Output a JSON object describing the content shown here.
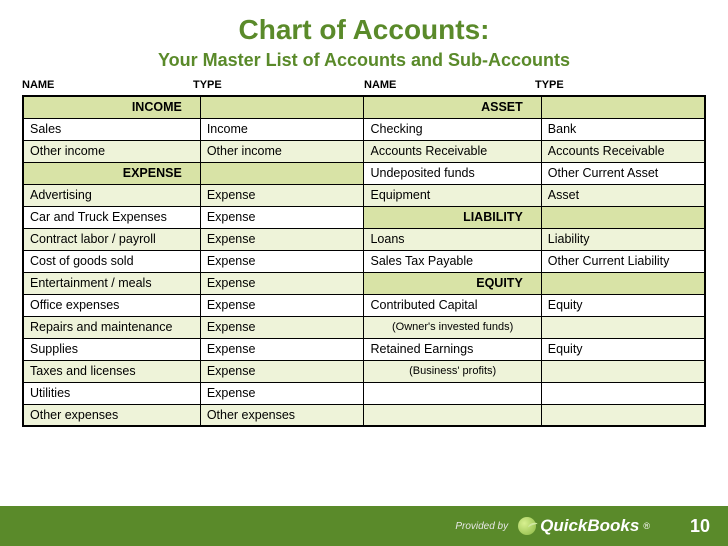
{
  "colors": {
    "title": "#5a8a2a",
    "section_bg": "#d8e3a6",
    "row_alt_bg": "#eef3d9",
    "row_bg": "#ffffff",
    "footer_bg": "#5a8a2a",
    "border": "#000000"
  },
  "title": {
    "text": "Chart of Accounts:",
    "fontsize": 28
  },
  "subtitle": {
    "text": "Your Master List of Accounts and Sub-Accounts",
    "fontsize": 18
  },
  "column_headers": [
    "NAME",
    "TYPE",
    "NAME",
    "TYPE"
  ],
  "col_widths_pct": [
    26,
    24,
    26,
    24
  ],
  "rows": [
    {
      "cells": [
        {
          "t": "INCOME",
          "kind": "section"
        },
        {
          "t": "",
          "kind": "section"
        },
        {
          "t": "ASSET",
          "kind": "section"
        },
        {
          "t": "",
          "kind": "section"
        }
      ],
      "alt": false
    },
    {
      "cells": [
        {
          "t": "Sales"
        },
        {
          "t": "Income"
        },
        {
          "t": "Checking"
        },
        {
          "t": "Bank"
        }
      ],
      "alt": false
    },
    {
      "cells": [
        {
          "t": "Other income"
        },
        {
          "t": "Other income"
        },
        {
          "t": "Accounts Receivable"
        },
        {
          "t": "Accounts Receivable"
        }
      ],
      "alt": true
    },
    {
      "cells": [
        {
          "t": "EXPENSE",
          "kind": "section"
        },
        {
          "t": "",
          "kind": "section"
        },
        {
          "t": "Undeposited funds"
        },
        {
          "t": "Other Current Asset"
        }
      ],
      "alt": false
    },
    {
      "cells": [
        {
          "t": "Advertising"
        },
        {
          "t": "Expense"
        },
        {
          "t": "Equipment"
        },
        {
          "t": "Asset"
        }
      ],
      "alt": true
    },
    {
      "cells": [
        {
          "t": "Car and Truck Expenses"
        },
        {
          "t": "Expense"
        },
        {
          "t": "LIABILITY",
          "kind": "section"
        },
        {
          "t": "",
          "kind": "section"
        }
      ],
      "alt": false
    },
    {
      "cells": [
        {
          "t": "Contract labor / payroll"
        },
        {
          "t": "Expense"
        },
        {
          "t": "Loans"
        },
        {
          "t": "Liability"
        }
      ],
      "alt": true
    },
    {
      "cells": [
        {
          "t": "Cost of goods sold"
        },
        {
          "t": "Expense"
        },
        {
          "t": "Sales Tax Payable"
        },
        {
          "t": "Other Current Liability"
        }
      ],
      "alt": false
    },
    {
      "cells": [
        {
          "t": "Entertainment / meals"
        },
        {
          "t": "Expense"
        },
        {
          "t": "EQUITY",
          "kind": "section"
        },
        {
          "t": "",
          "kind": "section"
        }
      ],
      "alt": true
    },
    {
      "cells": [
        {
          "t": "Office expenses"
        },
        {
          "t": "Expense"
        },
        {
          "t": "Contributed Capital"
        },
        {
          "t": "Equity"
        }
      ],
      "alt": false
    },
    {
      "cells": [
        {
          "t": "Repairs and maintenance"
        },
        {
          "t": "Expense"
        },
        {
          "t": "(Owner's invested funds)",
          "kind": "note"
        },
        {
          "t": ""
        }
      ],
      "alt": true
    },
    {
      "cells": [
        {
          "t": "Supplies"
        },
        {
          "t": "Expense"
        },
        {
          "t": "Retained Earnings"
        },
        {
          "t": "Equity"
        }
      ],
      "alt": false
    },
    {
      "cells": [
        {
          "t": "Taxes and licenses"
        },
        {
          "t": "Expense"
        },
        {
          "t": "(Business' profits)",
          "kind": "note"
        },
        {
          "t": ""
        }
      ],
      "alt": true
    },
    {
      "cells": [
        {
          "t": "Utilities"
        },
        {
          "t": "Expense"
        },
        {
          "t": ""
        },
        {
          "t": ""
        }
      ],
      "alt": false
    },
    {
      "cells": [
        {
          "t": "Other expenses"
        },
        {
          "t": "Other expenses"
        },
        {
          "t": ""
        },
        {
          "t": ""
        }
      ],
      "alt": true
    }
  ],
  "footer": {
    "provided_by": "Provided by",
    "brand": "QuickBooks",
    "page": "10"
  }
}
